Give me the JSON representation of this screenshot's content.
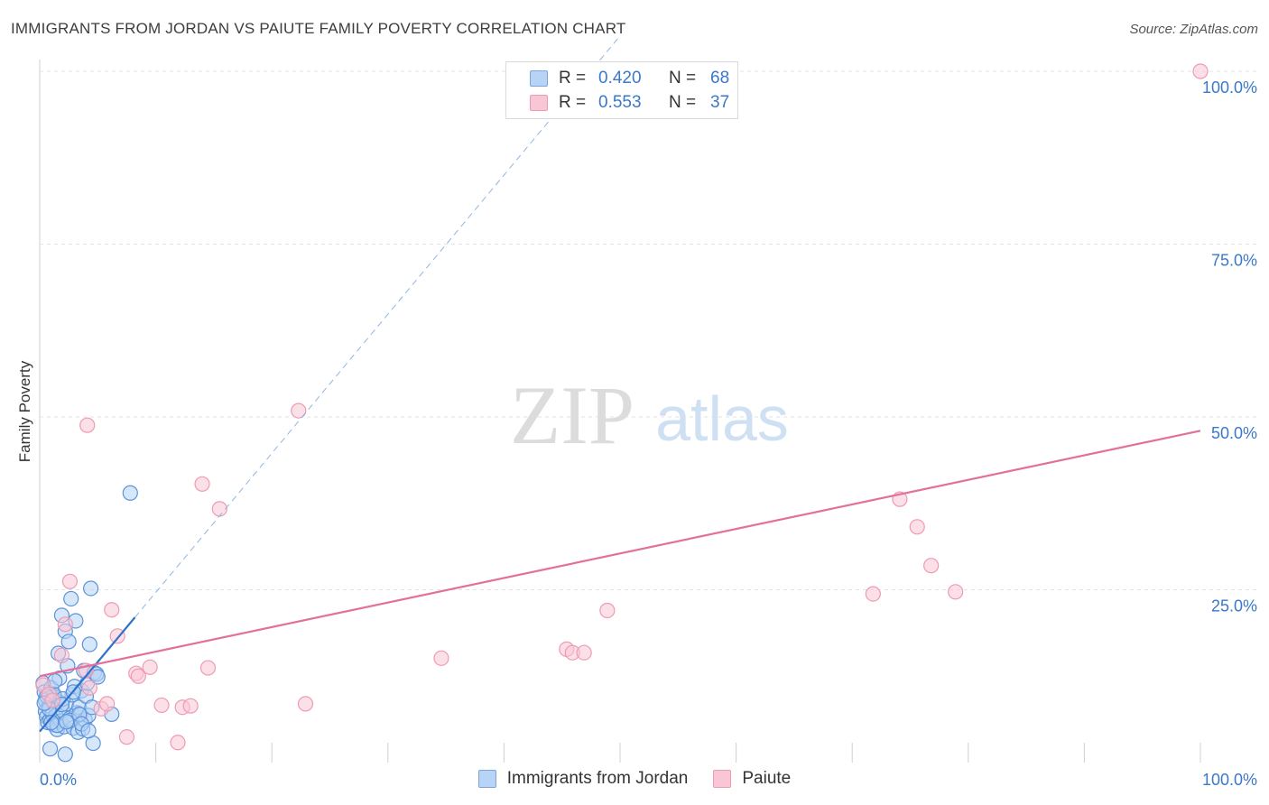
{
  "title": "IMMIGRANTS FROM JORDAN VS PAIUTE FAMILY POVERTY CORRELATION CHART",
  "source": "Source: ZipAtlas.com",
  "watermark": {
    "zip": "ZIP",
    "atlas": "atlas"
  },
  "legend": {
    "r_label": "R =",
    "n_label": "N =",
    "rows": [
      {
        "name": "Immigrants from Jordan",
        "r": "0.420",
        "n": "68",
        "color": "#7aa6de"
      },
      {
        "name": "Paiute",
        "r": "0.553",
        "n": "37",
        "color": "#ee9ab3"
      }
    ]
  },
  "chart_data": {
    "type": "scatter",
    "title": "IMMIGRANTS FROM JORDAN VS PAIUTE FAMILY POVERTY CORRELATION CHART",
    "xlabel": "",
    "ylabel": "Family Poverty",
    "xlim": [
      0,
      100
    ],
    "ylim": [
      0,
      100
    ],
    "x_tick_labels": [
      "0.0%",
      "100.0%"
    ],
    "y_tick_labels": [
      "100.0%",
      "75.0%",
      "50.0%",
      "25.0%"
    ],
    "y_ticks": [
      100,
      75,
      50,
      25
    ],
    "grid": true,
    "series": [
      {
        "name": "Immigrants from Jordan",
        "color": "#5b93d9",
        "fill": "#b7d3f5",
        "trend": {
          "x0": 0,
          "y0": 4.5,
          "x1": 8.2,
          "y1": 21,
          "dash_to_x": 50,
          "line_color": "#2f72cc"
        },
        "points": [
          [
            0.3,
            11.5
          ],
          [
            0.4,
            10.2
          ],
          [
            0.5,
            9.0
          ],
          [
            0.5,
            7.4
          ],
          [
            0.6,
            6.6
          ],
          [
            0.7,
            5.8
          ],
          [
            0.8,
            8.2
          ],
          [
            0.9,
            6.2
          ],
          [
            1.0,
            10.8
          ],
          [
            1.1,
            7.0
          ],
          [
            1.2,
            5.5
          ],
          [
            1.3,
            9.5
          ],
          [
            1.4,
            6.8
          ],
          [
            1.5,
            4.8
          ],
          [
            1.6,
            8.8
          ],
          [
            1.6,
            15.8
          ],
          [
            1.7,
            12.2
          ],
          [
            1.8,
            6.0
          ],
          [
            1.9,
            21.3
          ],
          [
            2.0,
            7.5
          ],
          [
            2.1,
            5.2
          ],
          [
            2.2,
            19.0
          ],
          [
            2.3,
            8.5
          ],
          [
            2.4,
            14.0
          ],
          [
            2.5,
            17.5
          ],
          [
            2.6,
            6.4
          ],
          [
            2.7,
            23.7
          ],
          [
            2.8,
            9.8
          ],
          [
            2.9,
            5.0
          ],
          [
            3.0,
            11.0
          ],
          [
            3.1,
            20.5
          ],
          [
            3.2,
            7.2
          ],
          [
            3.3,
            4.4
          ],
          [
            3.4,
            8.0
          ],
          [
            3.5,
            6.9
          ],
          [
            3.6,
            10.4
          ],
          [
            0.9,
            2.0
          ],
          [
            2.2,
            1.2
          ],
          [
            3.7,
            4.9
          ],
          [
            3.8,
            13.3
          ],
          [
            3.9,
            6.2
          ],
          [
            4.0,
            9.6
          ],
          [
            4.1,
            11.5
          ],
          [
            4.2,
            6.8
          ],
          [
            4.3,
            17.1
          ],
          [
            4.4,
            25.2
          ],
          [
            4.5,
            8.0
          ],
          [
            4.6,
            2.8
          ],
          [
            4.7,
            13.0
          ],
          [
            4.9,
            12.8
          ],
          [
            5.0,
            12.4
          ],
          [
            6.2,
            7.0
          ],
          [
            7.8,
            39.0
          ],
          [
            0.8,
            7.8
          ],
          [
            1.2,
            9.9
          ],
          [
            1.5,
            5.4
          ],
          [
            2.0,
            9.2
          ],
          [
            2.6,
            6.1
          ],
          [
            3.4,
            7.0
          ],
          [
            0.6,
            9.6
          ],
          [
            1.0,
            5.8
          ],
          [
            1.9,
            8.4
          ],
          [
            2.9,
            10.2
          ],
          [
            3.6,
            5.6
          ],
          [
            1.3,
            11.8
          ],
          [
            0.4,
            8.6
          ],
          [
            2.3,
            5.9
          ],
          [
            4.2,
            4.6
          ]
        ]
      },
      {
        "name": "Paiute",
        "color": "#ee9ab3",
        "fill": "#f9c6d5",
        "trend": {
          "x0": 0,
          "y0": 12.5,
          "x1": 100,
          "y1": 48.0,
          "line_color": "#e2709a"
        },
        "points": [
          [
            0.3,
            11.2
          ],
          [
            0.8,
            9.9
          ],
          [
            1.9,
            15.5
          ],
          [
            2.2,
            20.0
          ],
          [
            2.6,
            26.2
          ],
          [
            4.0,
            13.3
          ],
          [
            4.1,
            48.8
          ],
          [
            4.3,
            10.8
          ],
          [
            5.3,
            7.8
          ],
          [
            5.8,
            8.5
          ],
          [
            6.2,
            22.1
          ],
          [
            6.7,
            18.3
          ],
          [
            7.5,
            3.7
          ],
          [
            8.3,
            12.9
          ],
          [
            8.5,
            12.5
          ],
          [
            9.5,
            13.8
          ],
          [
            10.5,
            8.3
          ],
          [
            11.9,
            2.9
          ],
          [
            12.3,
            8.0
          ],
          [
            13.0,
            8.2
          ],
          [
            14.0,
            40.3
          ],
          [
            14.5,
            13.7
          ],
          [
            15.5,
            36.7
          ],
          [
            22.3,
            50.9
          ],
          [
            22.9,
            8.5
          ],
          [
            34.6,
            15.1
          ],
          [
            45.4,
            16.4
          ],
          [
            45.9,
            15.9
          ],
          [
            46.9,
            15.9
          ],
          [
            48.9,
            22.0
          ],
          [
            71.8,
            24.4
          ],
          [
            74.1,
            38.1
          ],
          [
            75.6,
            34.1
          ],
          [
            76.8,
            28.5
          ],
          [
            78.9,
            24.7
          ],
          [
            100.0,
            100.0
          ],
          [
            1.1,
            9.0
          ]
        ]
      }
    ]
  }
}
